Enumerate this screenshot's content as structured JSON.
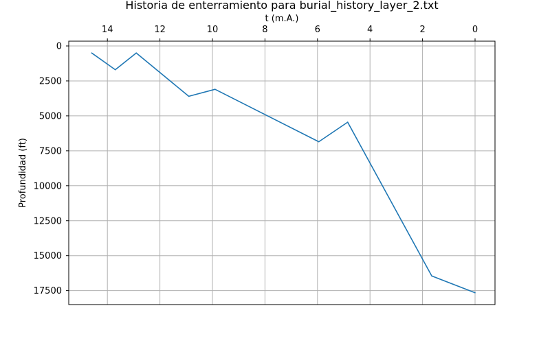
{
  "chart_data": {
    "type": "line",
    "title": "Historia de enterramiento para burial_history_layer_2.txt",
    "xlabel": "t (m.A.)",
    "ylabel": "Profundidad (ft)",
    "x_axis_position": "top",
    "x_inverted": true,
    "y_inverted": true,
    "xlim": [
      15.3,
      -0.7
    ],
    "ylim": [
      -400,
      18500
    ],
    "xticks": [
      14,
      12,
      10,
      8,
      6,
      4,
      2,
      0
    ],
    "yticks": [
      0,
      2500,
      5000,
      7500,
      10000,
      12500,
      15000,
      17500
    ],
    "grid": true,
    "series": [
      {
        "color": "#1f77b4",
        "x": [
          14.6,
          13.7,
          12.9,
          10.9,
          9.9,
          5.95,
          4.85,
          1.65,
          0.0
        ],
        "y": [
          500,
          1700,
          500,
          3600,
          3100,
          6850,
          5450,
          16450,
          17650
        ]
      }
    ]
  }
}
